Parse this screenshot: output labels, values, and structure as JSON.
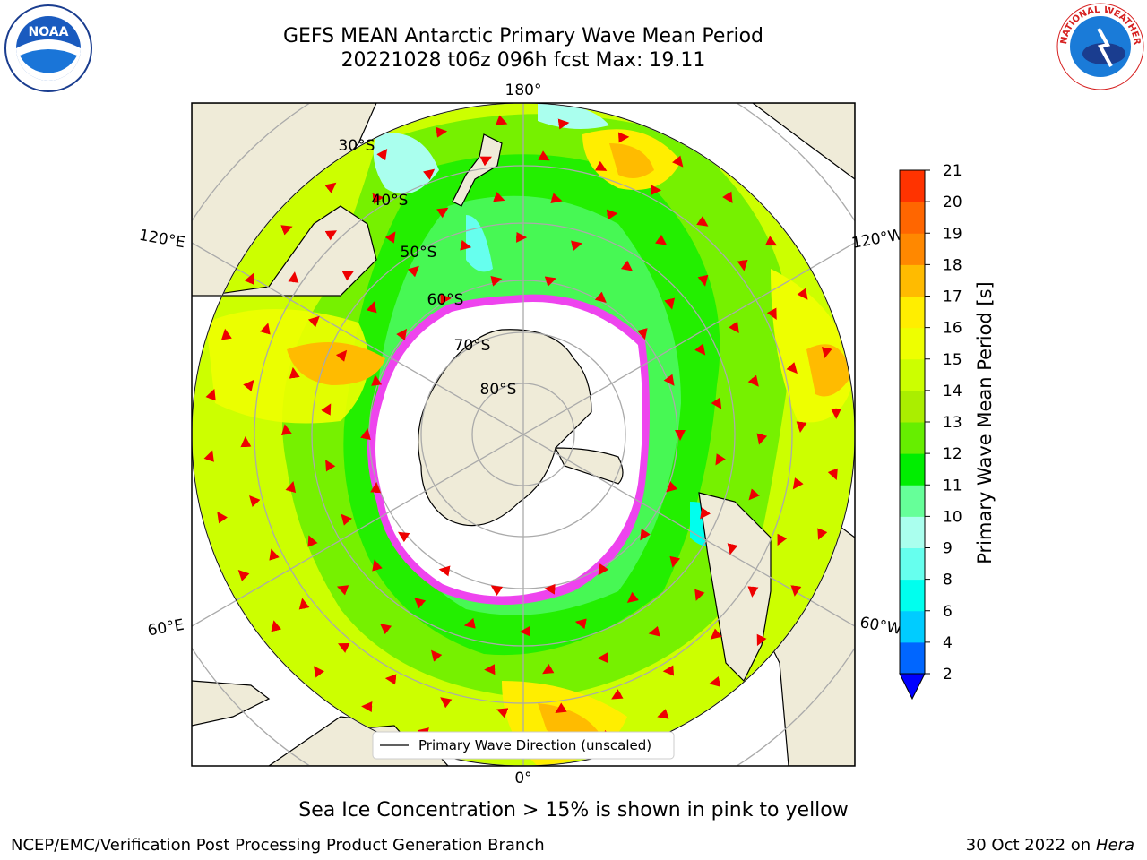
{
  "header": {
    "title": "GEFS MEAN Antarctic Primary Wave Mean Period",
    "subtitle": "20221028 t06z 096h fcst   Max: 19.11"
  },
  "logos": {
    "noaa_text": "NOAA",
    "nws_text": "NATIONAL WEATHER SERVICE"
  },
  "map": {
    "lon_labels": {
      "top": "180°",
      "bottom": "0°",
      "left_upper": "120°E",
      "left_lower": "60°E",
      "right_upper": "120°W",
      "right_lower": "60°W"
    },
    "lat_labels": [
      "30°S",
      "40°S",
      "50°S",
      "60°S",
      "70°S",
      "80°S"
    ],
    "legend_label": "Primary Wave Direction (unscaled)"
  },
  "colorbar": {
    "label": "Primary Wave Mean Period [s]",
    "ticks": [
      "2",
      "4",
      "6",
      "8",
      "9",
      "10",
      "11",
      "12",
      "13",
      "14",
      "15",
      "16",
      "17",
      "18",
      "19",
      "20",
      "21"
    ],
    "colors": [
      "#0066ff",
      "#00ccff",
      "#00ffee",
      "#66ffee",
      "#aaffee",
      "#66ff99",
      "#00ee00",
      "#66ee00",
      "#aaee00",
      "#ccff00",
      "#eeff00",
      "#ffee00",
      "#ffbb00",
      "#ff8800",
      "#ff6600",
      "#ff3300",
      "#ff0000"
    ],
    "underflow_color": "#0000ff"
  },
  "caption": "Sea Ice Concentration > 15% is shown in pink to yellow",
  "footer": {
    "left": "NCEP/EMC/Verification Post Processing Product Generation Branch",
    "right_prefix": "30 Oct 2022 on ",
    "right_italic": "Hera"
  }
}
